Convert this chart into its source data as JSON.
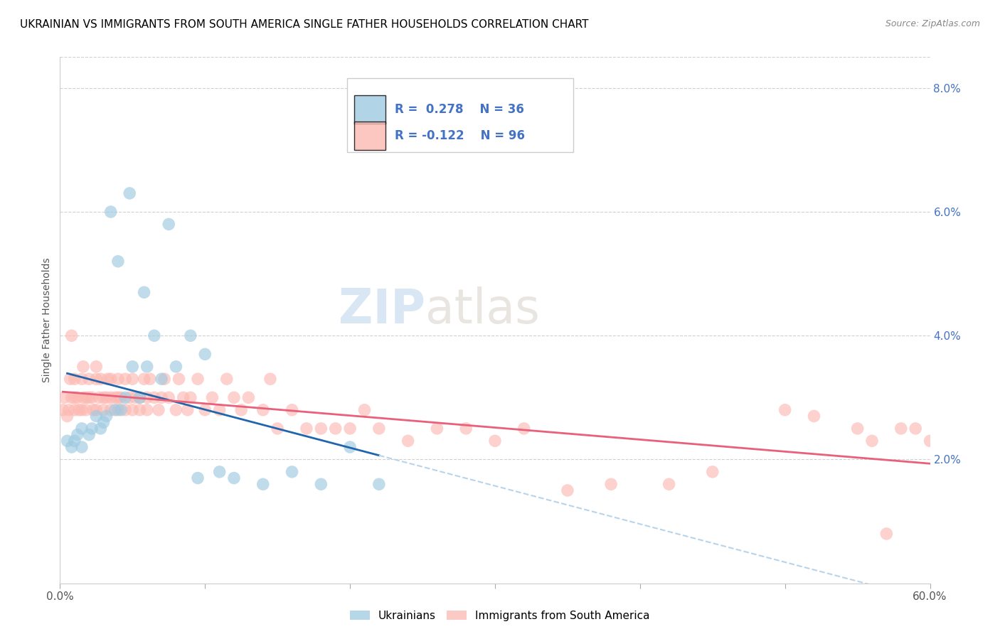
{
  "title": "UKRAINIAN VS IMMIGRANTS FROM SOUTH AMERICA SINGLE FATHER HOUSEHOLDS CORRELATION CHART",
  "source": "Source: ZipAtlas.com",
  "ylabel": "Single Father Households",
  "xlim": [
    0.0,
    0.6
  ],
  "ylim": [
    0.0,
    0.085
  ],
  "yticks": [
    0.02,
    0.04,
    0.06,
    0.08
  ],
  "ytick_labels": [
    "2.0%",
    "4.0%",
    "6.0%",
    "8.0%"
  ],
  "blue_color": "#9ecae1",
  "pink_color": "#fcb9b2",
  "blue_line_color": "#2166ac",
  "pink_line_color": "#e8607a",
  "dashed_line_color": "#b8d4ea",
  "legend_R_blue": "0.278",
  "legend_N_blue": "36",
  "legend_R_pink": "-0.122",
  "legend_N_pink": "96",
  "legend_label_blue": "Ukrainians",
  "legend_label_pink": "Immigrants from South America",
  "watermark": "ZIPatlas",
  "blue_scatter_x": [
    0.005,
    0.008,
    0.01,
    0.012,
    0.015,
    0.015,
    0.02,
    0.022,
    0.025,
    0.028,
    0.03,
    0.032,
    0.035,
    0.038,
    0.04,
    0.042,
    0.045,
    0.048,
    0.05,
    0.055,
    0.058,
    0.06,
    0.065,
    0.07,
    0.075,
    0.08,
    0.09,
    0.095,
    0.1,
    0.11,
    0.12,
    0.14,
    0.16,
    0.18,
    0.2,
    0.22
  ],
  "blue_scatter_y": [
    0.023,
    0.022,
    0.023,
    0.024,
    0.022,
    0.025,
    0.024,
    0.025,
    0.027,
    0.025,
    0.026,
    0.027,
    0.06,
    0.028,
    0.052,
    0.028,
    0.03,
    0.063,
    0.035,
    0.03,
    0.047,
    0.035,
    0.04,
    0.033,
    0.058,
    0.035,
    0.04,
    0.017,
    0.037,
    0.018,
    0.017,
    0.016,
    0.018,
    0.016,
    0.022,
    0.016
  ],
  "pink_scatter_x": [
    0.002,
    0.003,
    0.005,
    0.006,
    0.007,
    0.008,
    0.008,
    0.01,
    0.01,
    0.01,
    0.012,
    0.013,
    0.015,
    0.015,
    0.016,
    0.016,
    0.018,
    0.018,
    0.02,
    0.02,
    0.022,
    0.023,
    0.025,
    0.025,
    0.025,
    0.027,
    0.028,
    0.03,
    0.03,
    0.032,
    0.033,
    0.035,
    0.035,
    0.035,
    0.038,
    0.04,
    0.04,
    0.04,
    0.042,
    0.045,
    0.045,
    0.048,
    0.05,
    0.05,
    0.052,
    0.055,
    0.055,
    0.058,
    0.06,
    0.06,
    0.062,
    0.065,
    0.068,
    0.07,
    0.072,
    0.075,
    0.08,
    0.082,
    0.085,
    0.088,
    0.09,
    0.095,
    0.1,
    0.105,
    0.11,
    0.115,
    0.12,
    0.125,
    0.13,
    0.14,
    0.145,
    0.15,
    0.16,
    0.17,
    0.18,
    0.19,
    0.2,
    0.21,
    0.22,
    0.24,
    0.26,
    0.28,
    0.3,
    0.32,
    0.35,
    0.38,
    0.42,
    0.45,
    0.5,
    0.52,
    0.55,
    0.56,
    0.57,
    0.58,
    0.59,
    0.6
  ],
  "pink_scatter_y": [
    0.028,
    0.03,
    0.027,
    0.028,
    0.033,
    0.03,
    0.04,
    0.028,
    0.03,
    0.033,
    0.03,
    0.028,
    0.028,
    0.033,
    0.03,
    0.035,
    0.028,
    0.03,
    0.03,
    0.033,
    0.03,
    0.028,
    0.028,
    0.033,
    0.035,
    0.03,
    0.033,
    0.028,
    0.03,
    0.03,
    0.033,
    0.028,
    0.03,
    0.033,
    0.03,
    0.028,
    0.03,
    0.033,
    0.03,
    0.028,
    0.033,
    0.03,
    0.028,
    0.033,
    0.03,
    0.028,
    0.03,
    0.033,
    0.028,
    0.03,
    0.033,
    0.03,
    0.028,
    0.03,
    0.033,
    0.03,
    0.028,
    0.033,
    0.03,
    0.028,
    0.03,
    0.033,
    0.028,
    0.03,
    0.028,
    0.033,
    0.03,
    0.028,
    0.03,
    0.028,
    0.033,
    0.025,
    0.028,
    0.025,
    0.025,
    0.025,
    0.025,
    0.028,
    0.025,
    0.023,
    0.025,
    0.025,
    0.023,
    0.025,
    0.015,
    0.016,
    0.016,
    0.018,
    0.028,
    0.027,
    0.025,
    0.023,
    0.008,
    0.025,
    0.025,
    0.023
  ]
}
